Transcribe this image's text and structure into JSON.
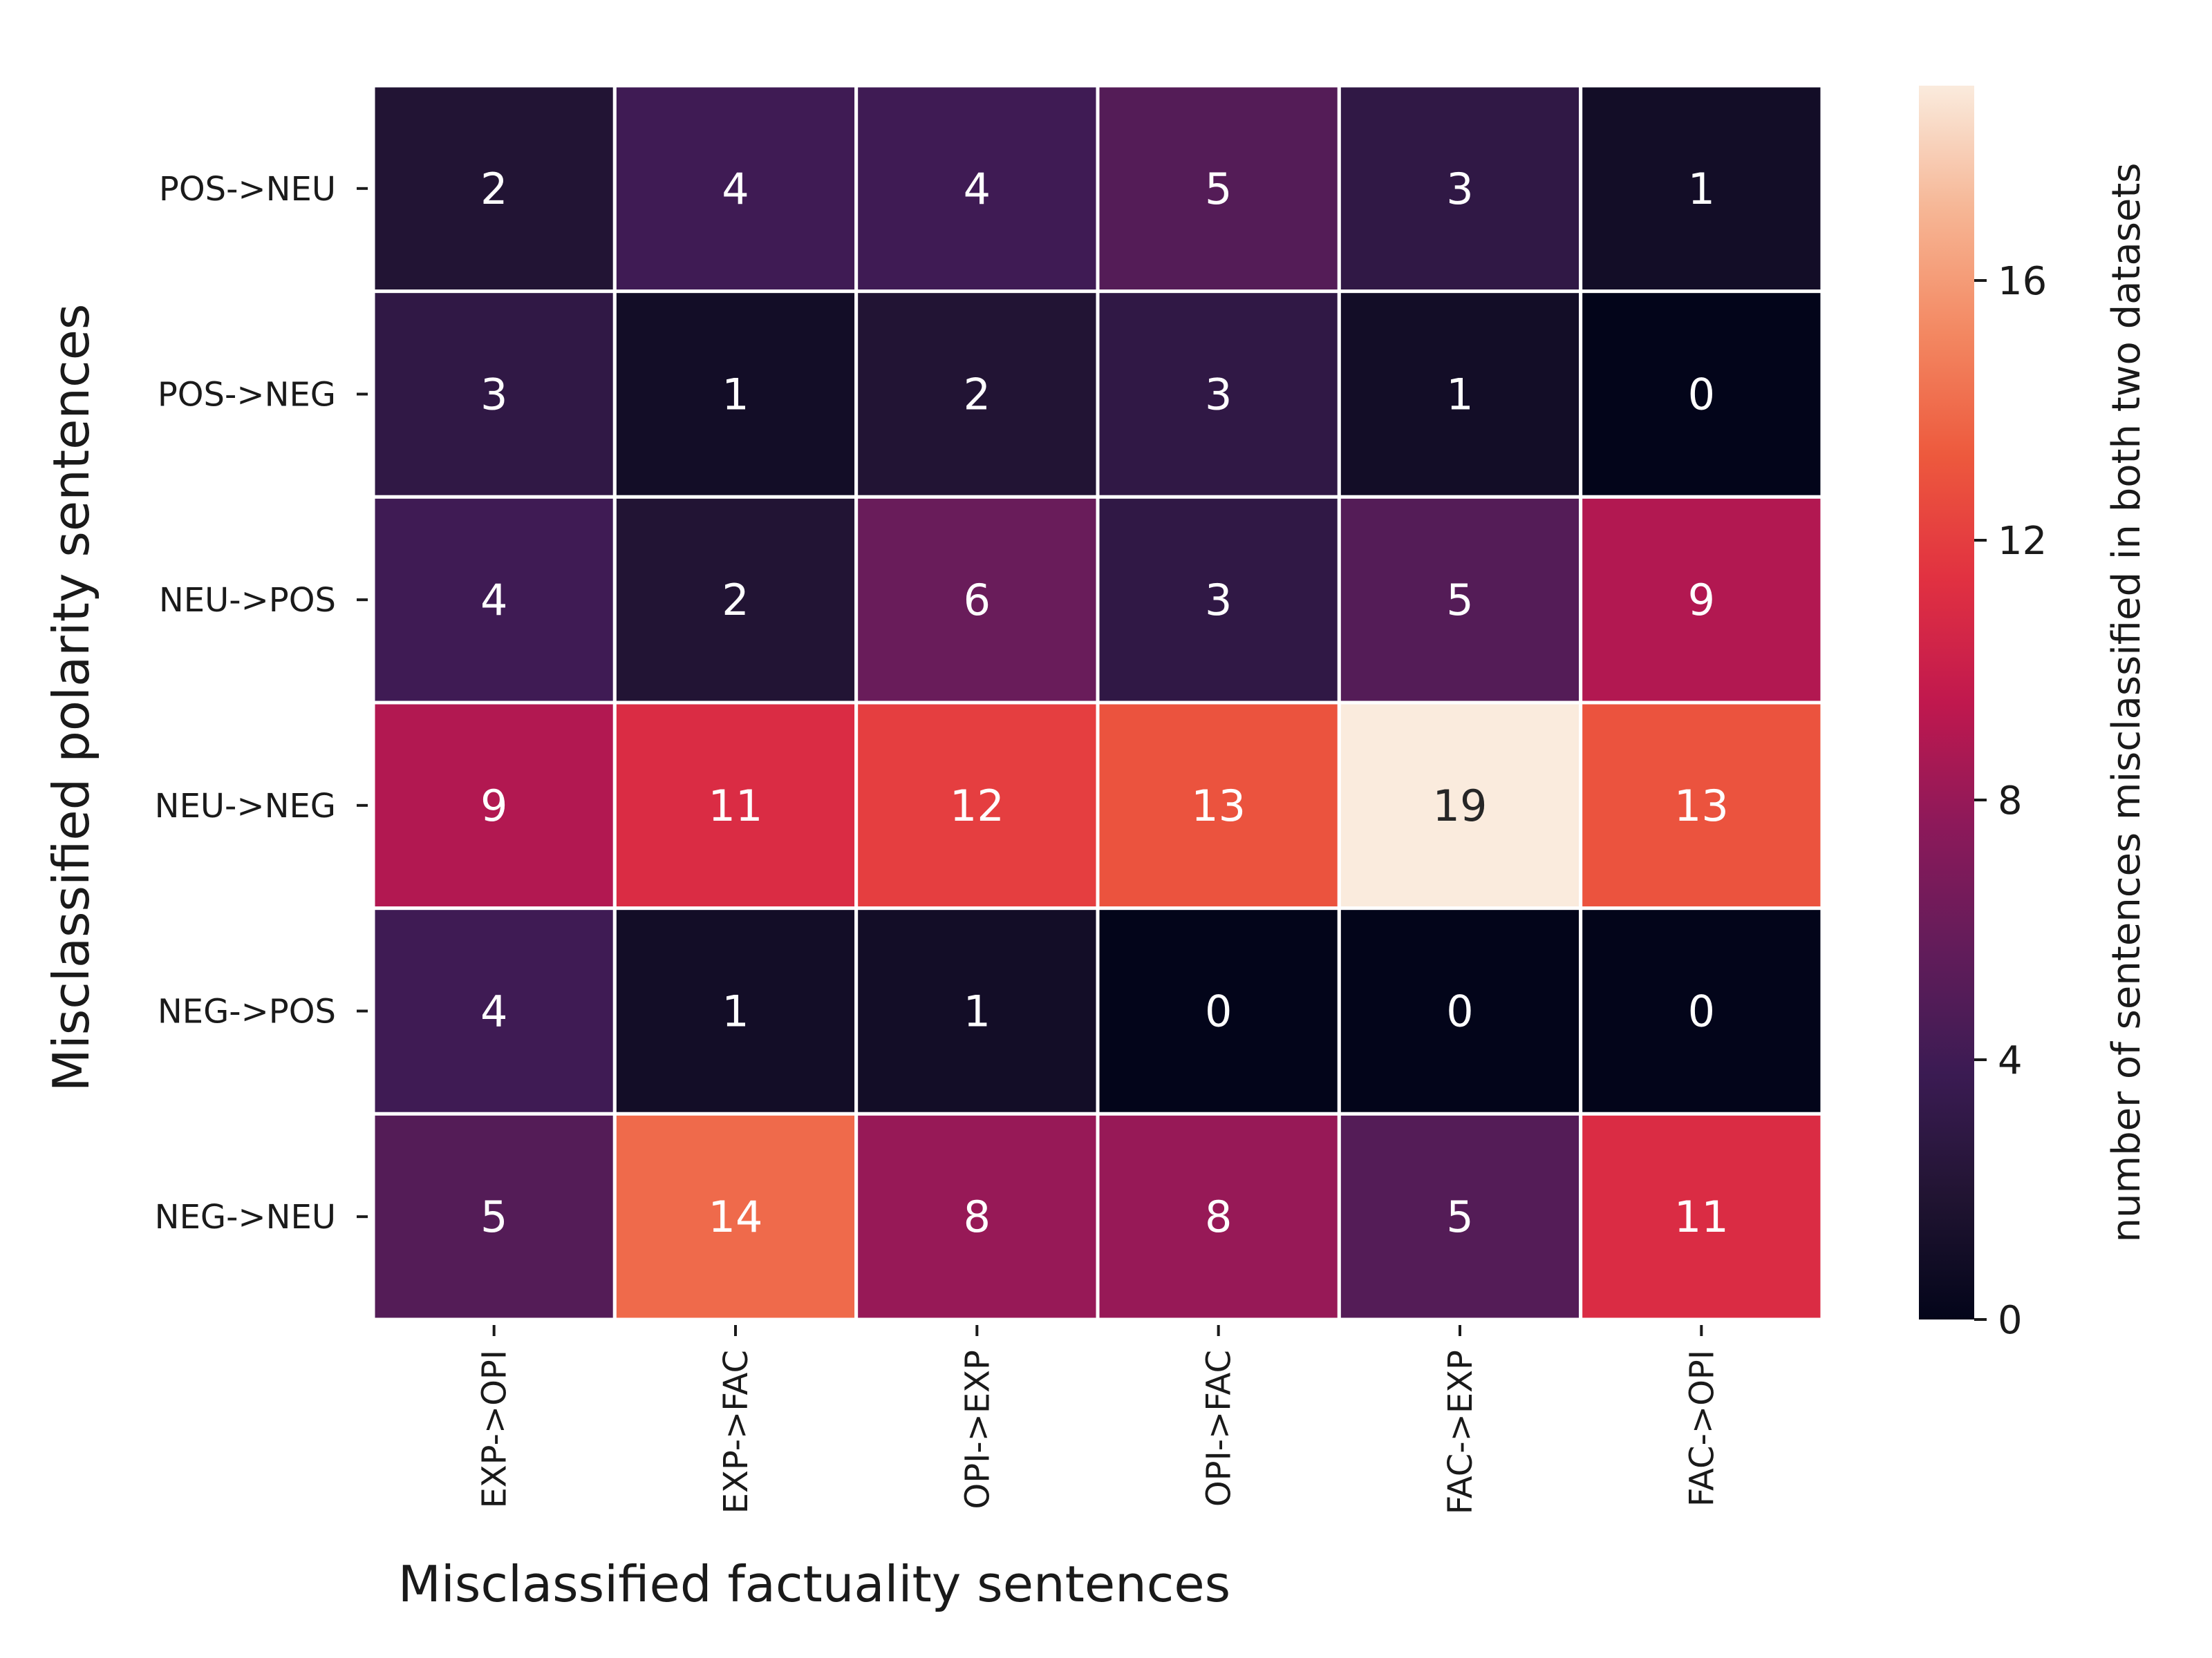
{
  "chart_data": {
    "type": "heatmap",
    "title": "",
    "xlabel": "Misclassified factuality sentences",
    "ylabel": "Misclassified polarity sentences",
    "x_categories": [
      "EXP->OPI",
      "EXP->FAC",
      "OPI->EXP",
      "OPI->FAC",
      "FAC->EXP",
      "FAC->OPI"
    ],
    "y_categories": [
      "POS->NEU",
      "POS->NEG",
      "NEU->POS",
      "NEU->NEG",
      "NEG->POS",
      "NEG->NEU"
    ],
    "values": [
      [
        2,
        4,
        4,
        5,
        3,
        1
      ],
      [
        3,
        1,
        2,
        3,
        1,
        0
      ],
      [
        4,
        2,
        6,
        3,
        5,
        9
      ],
      [
        9,
        11,
        12,
        13,
        19,
        13
      ],
      [
        4,
        1,
        1,
        0,
        0,
        0
      ],
      [
        5,
        14,
        8,
        8,
        5,
        11
      ]
    ],
    "colorbar": {
      "label": "number of sentences misclassified in both two datasets",
      "min": 0,
      "max": 19,
      "ticks": [
        0,
        4,
        8,
        12,
        16
      ],
      "colormap": "rocket"
    },
    "cell_separator_color": "#ffffff",
    "annotation_color_light": "#ffffff",
    "annotation_color_dark": "#262626"
  }
}
